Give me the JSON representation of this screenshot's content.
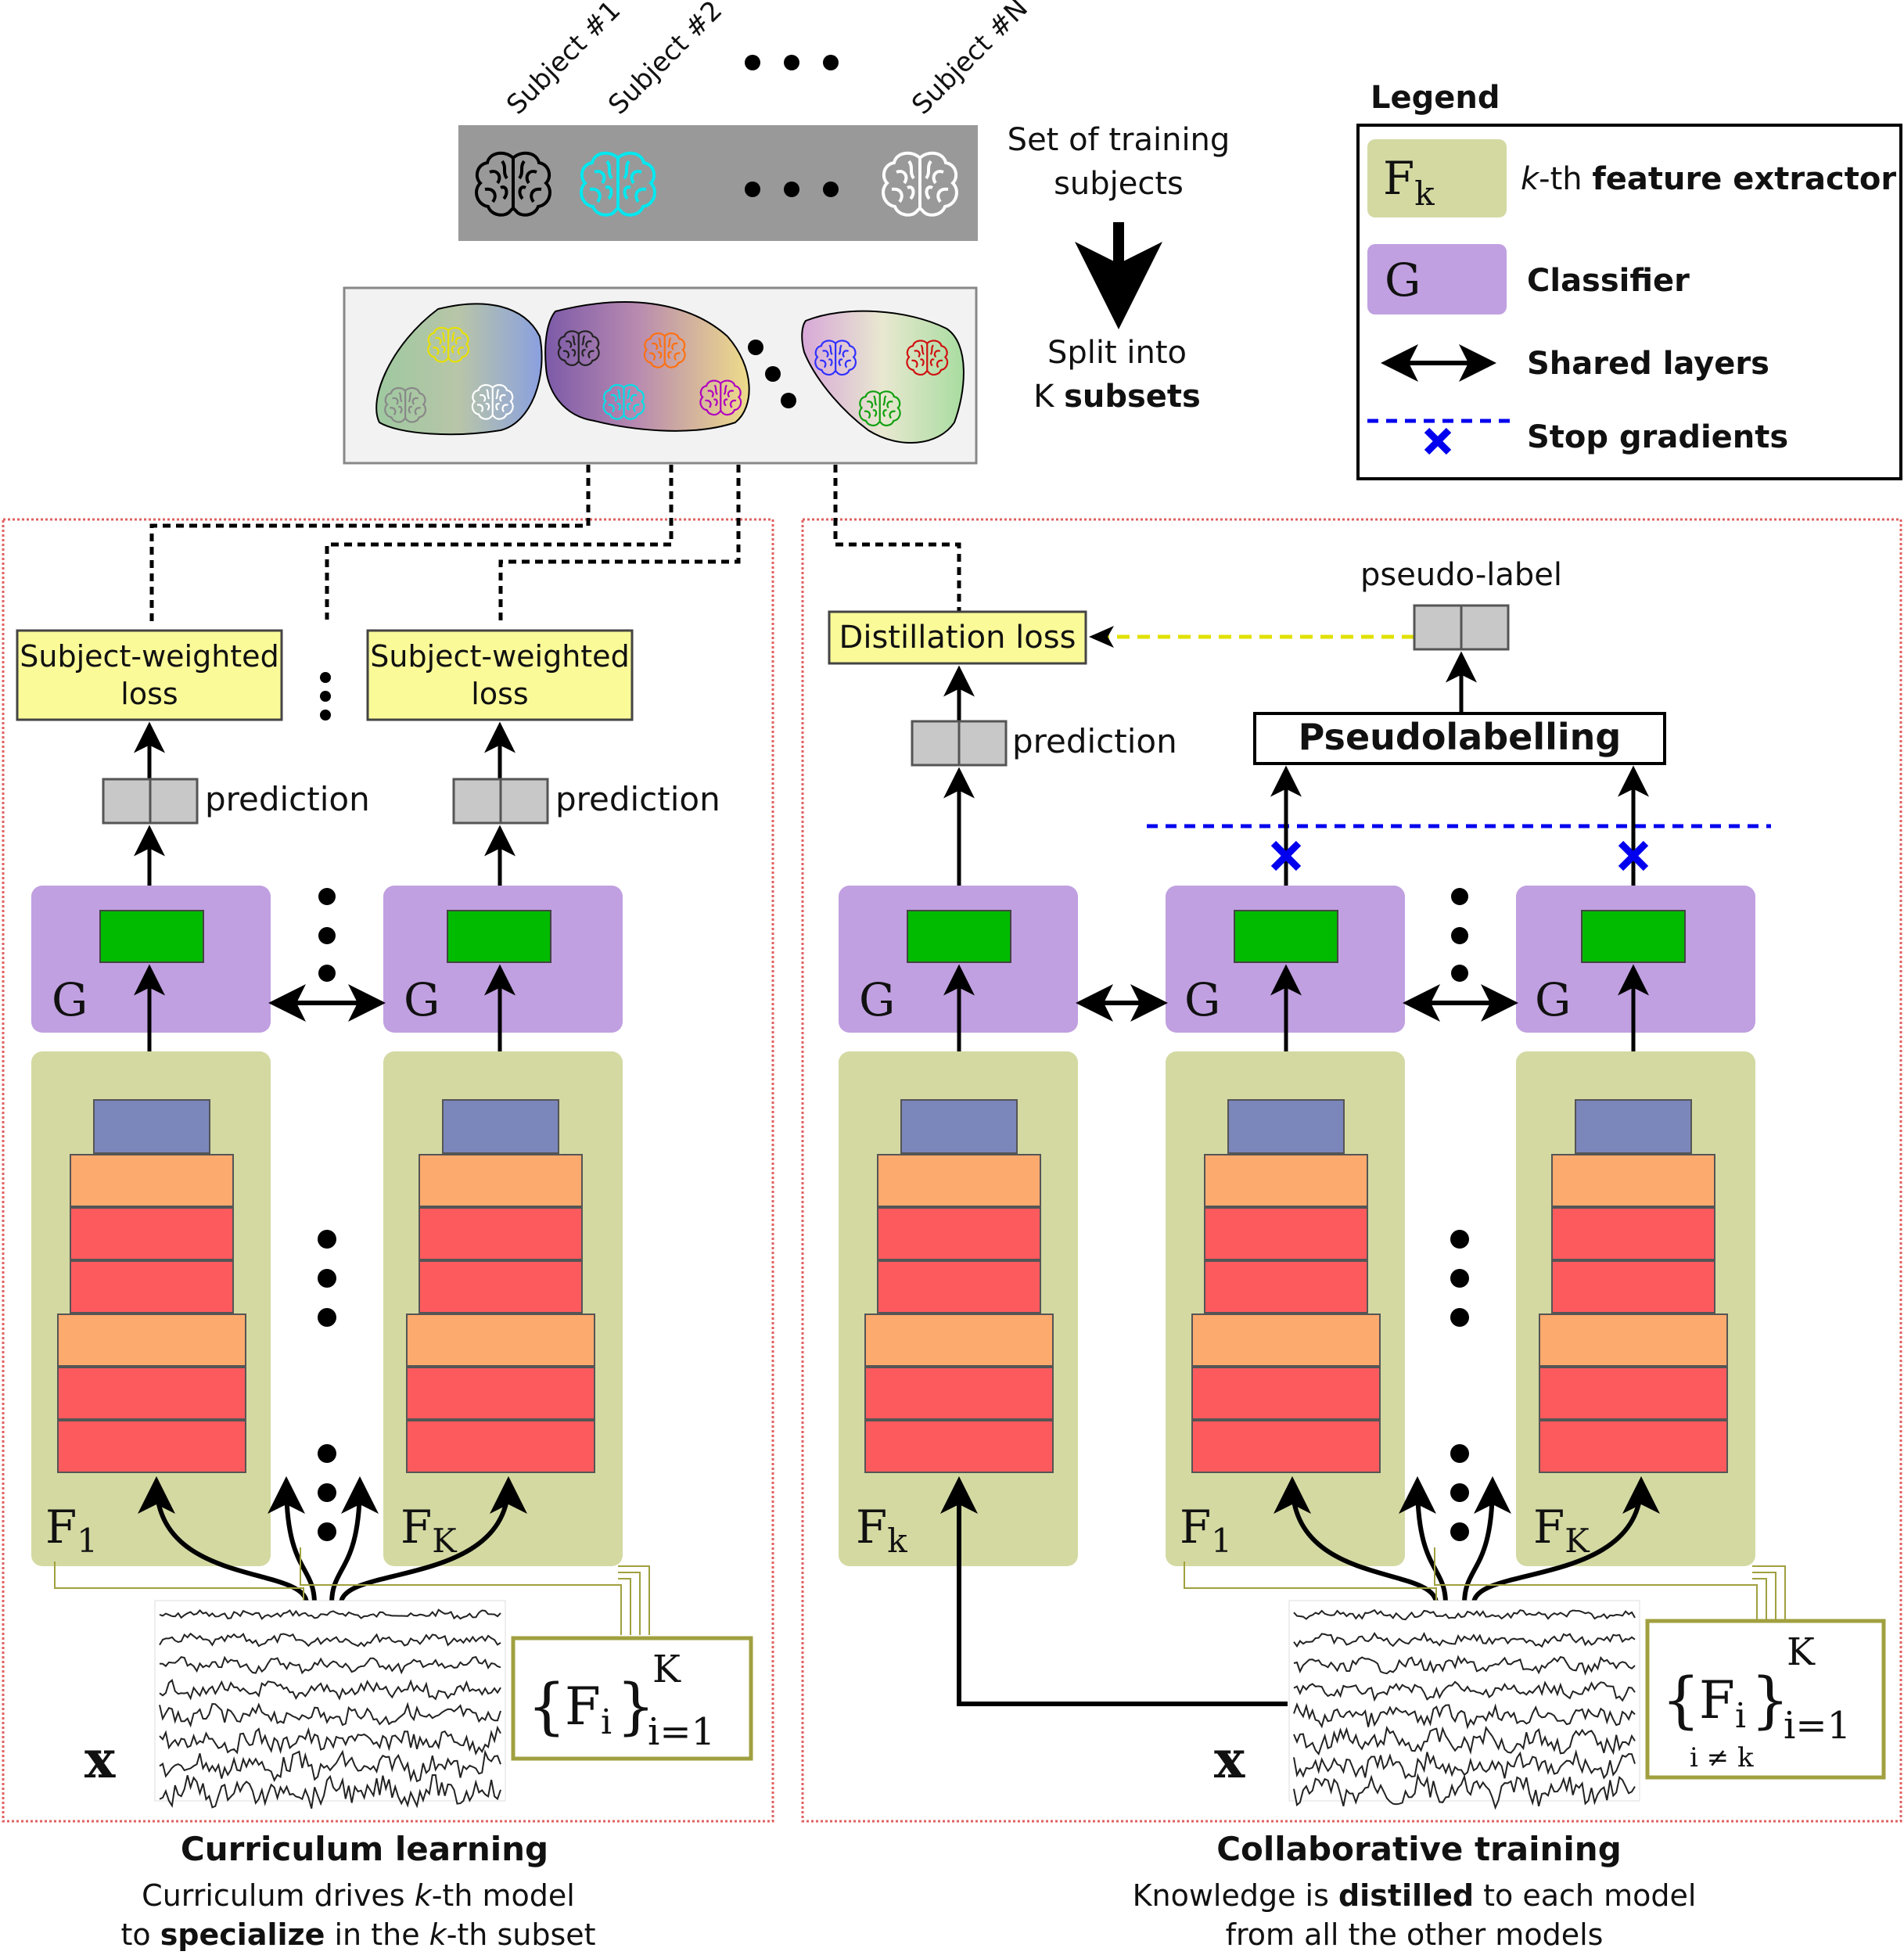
{
  "top": {
    "subjects": [
      "Subject #1",
      "Subject #2",
      "Subject #N"
    ],
    "set_caption_line1": "Set of training",
    "set_caption_line2": "subjects",
    "split_line1": "Split into",
    "split_line2_prefix": "K ",
    "split_line2_bold": "subsets"
  },
  "legend": {
    "title": "Legend",
    "fk_symbol": "F",
    "fk_sub": "k",
    "fk_label_italic": "k",
    "fk_label_plain": "-th ",
    "fk_label_bold": "feature extractor",
    "g_symbol": "G",
    "g_label": "Classifier",
    "shared_label": "Shared layers",
    "stop_label": "Stop gradients"
  },
  "left_panel": {
    "loss_line1": "Subject-weighted",
    "loss_line2": "loss",
    "prediction": "prediction",
    "g": "G",
    "f_symbol": "F",
    "f_sub_1": "1",
    "f_sub_K": "K",
    "x": "x",
    "set_F": "F",
    "set_i": "i",
    "set_K": "K",
    "set_range": "i=1",
    "title": "Curriculum learning",
    "caption1_a": "Curriculum drives ",
    "caption1_b": "k",
    "caption1_c": "-th model",
    "caption2_a": "to ",
    "caption2_b": "specialize",
    "caption2_c": " in the ",
    "caption2_d": "k",
    "caption2_e": "-th subset"
  },
  "right_panel": {
    "distillation": "Distillation loss",
    "pseudo_label": "pseudo-label",
    "prediction": "prediction",
    "pseudolabelling": "Pseudolabelling",
    "g": "G",
    "f_symbol": "F",
    "f_sub_k": "k",
    "f_sub_1": "1",
    "f_sub_K": "K",
    "x": "x",
    "set_F": "F",
    "set_i": "i",
    "set_K": "K",
    "set_range": "i=1",
    "set_cond": "i ≠ k",
    "title": "Collaborative training",
    "caption1_a": "Knowledge is ",
    "caption1_b": "distilled",
    "caption1_c": " to each model",
    "caption2": "from all the other models"
  },
  "colors": {
    "feature_bg": "#d4d9a2",
    "classifier_bg": "#c0a0e0",
    "green_unit": "#00bb00",
    "blue_layer": "#7b86bb",
    "orange_layer": "#fdaa6e",
    "red_layer": "#fd5a5e",
    "loss_bg": "#fafa99",
    "stop_blue": "#0000ee",
    "yellow_dash": "#e0e000",
    "olive": "#a0a040",
    "panel_border": "#e06060"
  }
}
